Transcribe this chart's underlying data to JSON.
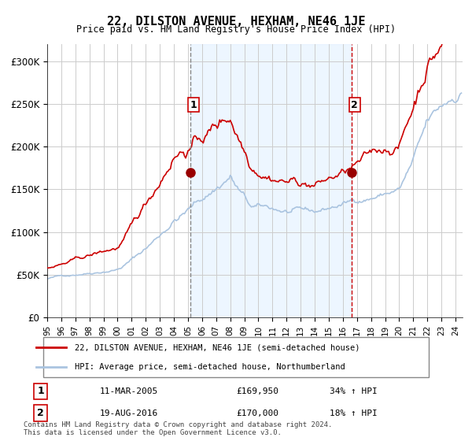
{
  "title": "22, DILSTON AVENUE, HEXHAM, NE46 1JE",
  "subtitle": "Price paid vs. HM Land Registry's House Price Index (HPI)",
  "ylabel_ticks": [
    "£0",
    "£50K",
    "£100K",
    "£150K",
    "£200K",
    "£250K",
    "£300K"
  ],
  "ytick_values": [
    0,
    50000,
    100000,
    150000,
    200000,
    250000,
    300000
  ],
  "ylim": [
    0,
    320000
  ],
  "xlim_start": 1995.0,
  "xlim_end": 2024.5,
  "event1_x": 2005.19,
  "event1_y": 169950,
  "event1_label": "1",
  "event1_date": "11-MAR-2005",
  "event1_price": "£169,950",
  "event1_hpi": "34% ↑ HPI",
  "event2_x": 2016.63,
  "event2_y": 170000,
  "event2_label": "2",
  "event2_date": "19-AUG-2016",
  "event2_price": "£170,000",
  "event2_hpi": "18% ↑ HPI",
  "legend_line1": "22, DILSTON AVENUE, HEXHAM, NE46 1JE (semi-detached house)",
  "legend_line2": "HPI: Average price, semi-detached house, Northumberland",
  "footer": "Contains HM Land Registry data © Crown copyright and database right 2024.\nThis data is licensed under the Open Government Licence v3.0.",
  "hpi_color": "#aac4e0",
  "price_color": "#cc0000",
  "bg_shade_color": "#ddeeff",
  "vline1_color": "#888888",
  "vline2_color": "#cc0000",
  "grid_color": "#cccccc",
  "background_color": "#ffffff"
}
